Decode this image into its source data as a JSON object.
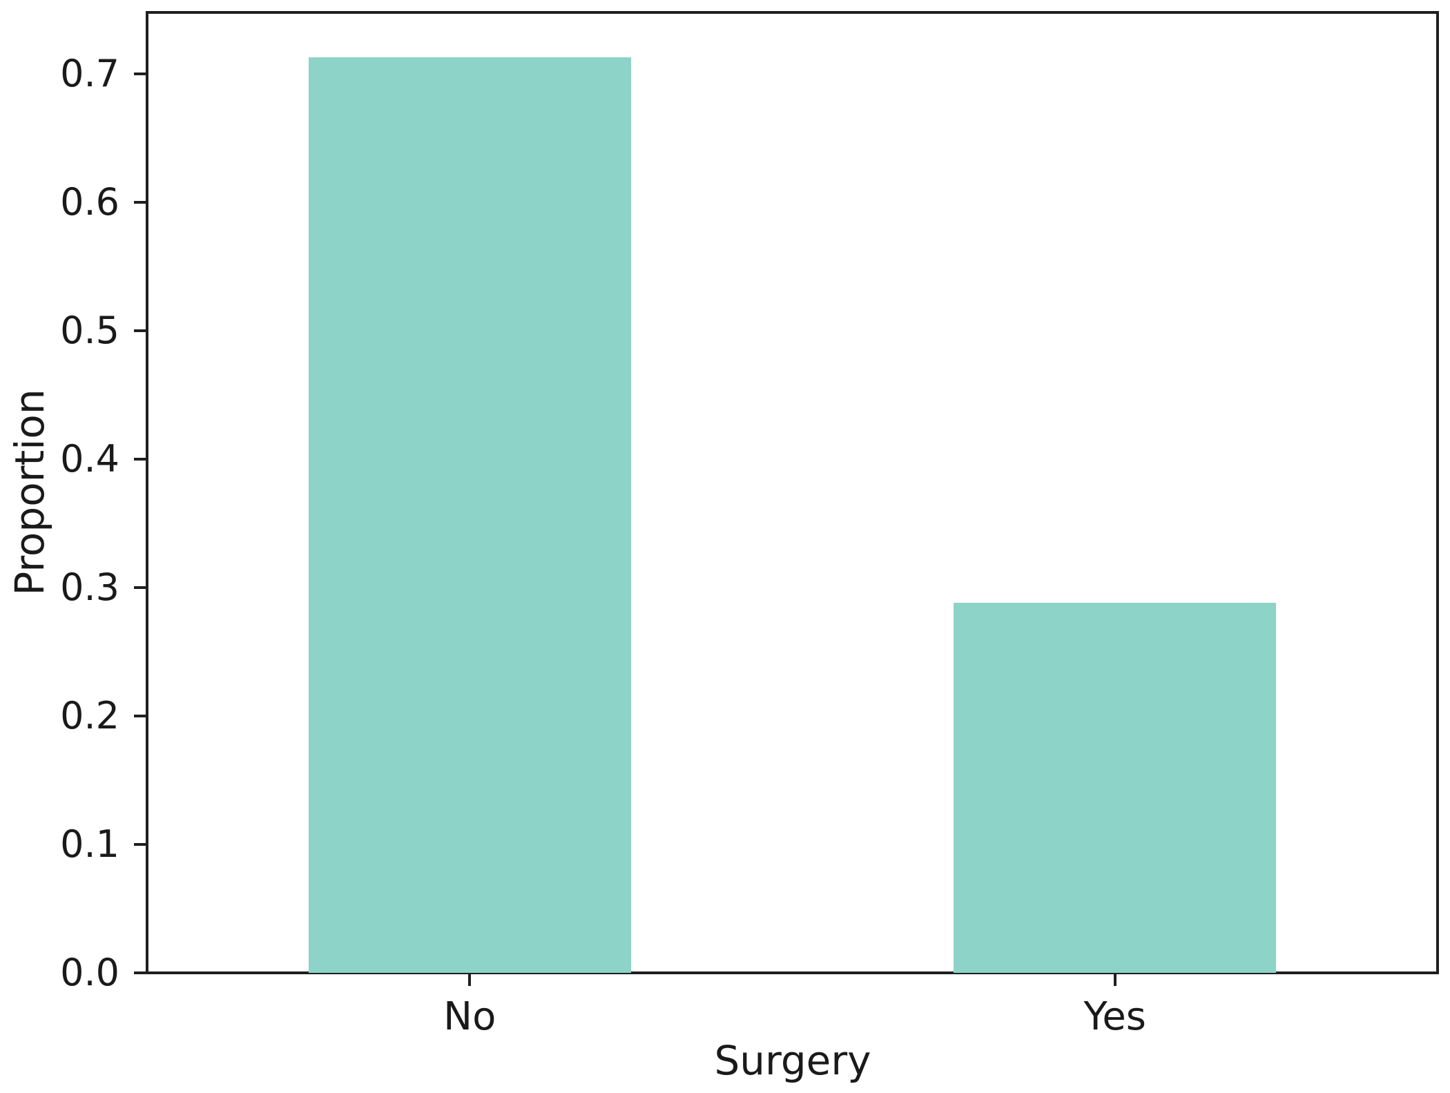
{
  "chart_data": {
    "type": "bar",
    "categories": [
      "No",
      "Yes"
    ],
    "values": [
      0.713,
      0.288
    ],
    "title": "",
    "xlabel": "Surgery",
    "ylabel": "Proportion",
    "ylim": [
      0,
      0.748
    ],
    "yticks": [
      0.0,
      0.1,
      0.2,
      0.3,
      0.4,
      0.5,
      0.6,
      0.7
    ],
    "ytick_labels": [
      "0.0",
      "0.1",
      "0.2",
      "0.3",
      "0.4",
      "0.5",
      "0.6",
      "0.7"
    ],
    "bar_color": "#8dd3c7",
    "axis_color": "#1f1f1f",
    "text_color": "#1a1a1a",
    "background_color": "#ffffff",
    "bar_width_fraction_of_slot": 0.5,
    "grid": false,
    "legend_position": "none"
  }
}
